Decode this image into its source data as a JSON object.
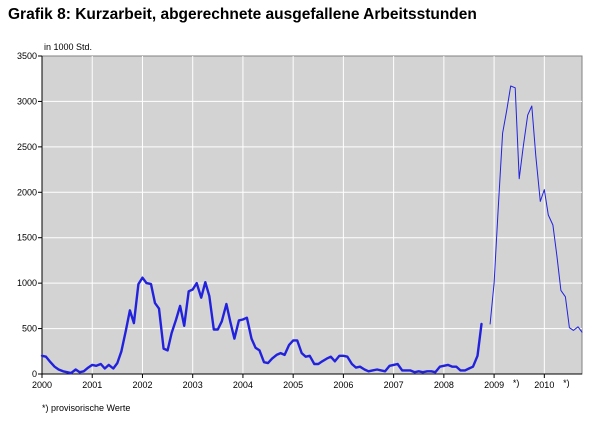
{
  "title": "Grafik 8: Kurzarbeit, abgerechnete ausgefallene Arbeitsstunden",
  "footnote": "*) provisorische Werte",
  "chart_data": {
    "type": "line",
    "title": "Grafik 8: Kurzarbeit, abgerechnete ausgefallene Arbeitsstunden",
    "ylabel": "in 1000 Std.",
    "xlabel": "",
    "ylim": [
      0,
      3500
    ],
    "xlim": [
      2000.0,
      2010.75
    ],
    "yticks": [
      0,
      500,
      1000,
      1500,
      2000,
      2500,
      3000,
      3500
    ],
    "xtick_labels": [
      {
        "x": 2000,
        "label": "2000"
      },
      {
        "x": 2001,
        "label": "2001"
      },
      {
        "x": 2002,
        "label": "2002"
      },
      {
        "x": 2003,
        "label": "2003"
      },
      {
        "x": 2004,
        "label": "2004"
      },
      {
        "x": 2005,
        "label": "2005"
      },
      {
        "x": 2006,
        "label": "2006"
      },
      {
        "x": 2007,
        "label": "2007"
      },
      {
        "x": 2008,
        "label": "2008"
      },
      {
        "x": 2009,
        "label": "2009",
        "mark": "*)"
      },
      {
        "x": 2010,
        "label": "2010",
        "mark": "*)"
      }
    ],
    "grid": true,
    "background": "#d3d3d3",
    "line_color": "#2222dd",
    "series": [
      {
        "style": "final",
        "x": [
          2000.0,
          2000.08,
          2000.17,
          2000.25,
          2000.33,
          2000.42,
          2000.5,
          2000.58,
          2000.67,
          2000.75,
          2000.83,
          2000.92,
          2001.0,
          2001.08,
          2001.17,
          2001.25,
          2001.33,
          2001.42,
          2001.5,
          2001.58,
          2001.67,
          2001.75,
          2001.83,
          2001.92,
          2002.0,
          2002.08,
          2002.17,
          2002.25,
          2002.33,
          2002.42,
          2002.5,
          2002.58,
          2002.67,
          2002.75,
          2002.83,
          2002.92,
          2003.0,
          2003.08,
          2003.17,
          2003.25,
          2003.33,
          2003.42,
          2003.5,
          2003.58,
          2003.67,
          2003.75,
          2003.83,
          2003.92,
          2004.0,
          2004.08,
          2004.17,
          2004.25,
          2004.33,
          2004.42,
          2004.5,
          2004.58,
          2004.67,
          2004.75,
          2004.83,
          2004.92,
          2005.0,
          2005.08,
          2005.17,
          2005.25,
          2005.33,
          2005.42,
          2005.5,
          2005.58,
          2005.67,
          2005.75,
          2005.83,
          2005.92,
          2006.0,
          2006.08,
          2006.17,
          2006.25,
          2006.33,
          2006.42,
          2006.5,
          2006.58,
          2006.67,
          2006.75,
          2006.83,
          2006.92,
          2007.0,
          2007.08,
          2007.17,
          2007.25,
          2007.33,
          2007.42,
          2007.5,
          2007.58,
          2007.67,
          2007.75,
          2007.83,
          2007.92,
          2008.0,
          2008.08,
          2008.17,
          2008.25,
          2008.33,
          2008.42,
          2008.5,
          2008.58,
          2008.67,
          2008.75,
          2008.83,
          2008.92
        ],
        "y": [
          200,
          190,
          130,
          80,
          50,
          30,
          20,
          10,
          50,
          20,
          30,
          70,
          100,
          90,
          110,
          60,
          100,
          60,
          120,
          250,
          480,
          700,
          560,
          990,
          1060,
          1000,
          990,
          780,
          720,
          280,
          260,
          450,
          600,
          750,
          530,
          910,
          930,
          1000,
          840,
          1010,
          860,
          490,
          490,
          580,
          770,
          570,
          390,
          590,
          600,
          620,
          390,
          290,
          260,
          130,
          120,
          170,
          210,
          230,
          210,
          320,
          370,
          370,
          230,
          190,
          200,
          110,
          110,
          140,
          170,
          190,
          140,
          200,
          200,
          190,
          110,
          70,
          80,
          50,
          30,
          40,
          50,
          40,
          30,
          90,
          100,
          110,
          40,
          40,
          40,
          20,
          30,
          20,
          30,
          30,
          20,
          80,
          90,
          100,
          80,
          80,
          40,
          40,
          60,
          80,
          200,
          550,
          null,
          null
        ],
        "width": 2.4
      },
      {
        "style": "provisional",
        "x": [
          2008.92,
          2009.0,
          2009.08,
          2009.17,
          2009.25,
          2009.33,
          2009.42,
          2009.5,
          2009.58,
          2009.67,
          2009.75,
          2009.83,
          2009.92,
          2010.0,
          2010.08,
          2010.17,
          2010.25,
          2010.33,
          2010.42,
          2010.5,
          2010.58,
          2010.67,
          2010.75
        ],
        "y": [
          550,
          1000,
          1800,
          2650,
          2900,
          3170,
          3150,
          2150,
          2500,
          2850,
          2950,
          2400,
          1900,
          2030,
          1750,
          1640,
          1300,
          920,
          850,
          510,
          480,
          520,
          460
        ],
        "width": 1.0
      }
    ]
  }
}
